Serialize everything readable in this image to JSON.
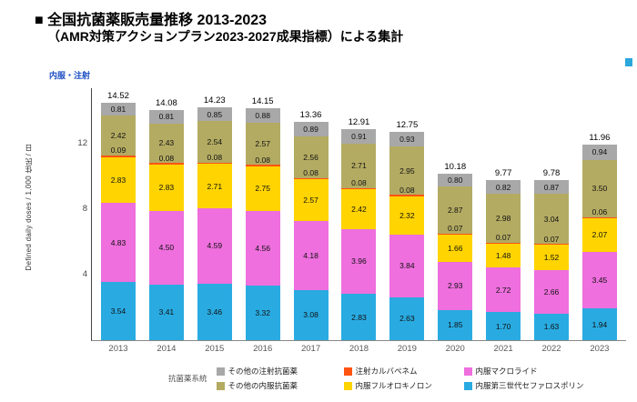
{
  "header": {
    "title": "■ 全国抗菌薬販売量推移 2013-2023",
    "subtitle": "（AMR対策アクションプラン2023-2027成果指標）による集計"
  },
  "chart": {
    "corner_label": "内服・注射"
  },
  "legend": {
    "title": "抗菌薬系統",
    "rows": [
      [
        {
          "label": "その他の注射抗菌薬",
          "color": "#a8a8a8"
        },
        {
          "label": "注射カルバペネム",
          "color": "#ff5412"
        },
        {
          "label": "内服マクロライド",
          "color": "#ee6fdd"
        }
      ],
      [
        {
          "label": "その他の内服抗菌薬",
          "color": "#b3ab62"
        },
        {
          "label": "内服フルオロキノロン",
          "color": "#ffd400"
        },
        {
          "label": "内服第三世代セファロスポリン",
          "color": "#29abe2"
        }
      ]
    ]
  },
  "chart_data": {
    "type": "bar",
    "stacked": true,
    "title": "全国抗菌薬販売量推移 2013-2023",
    "ylabel": "Defined daily doses / 1,000 住民 / 日",
    "ylim": [
      0,
      15
    ],
    "yticks": [
      4,
      8,
      12
    ],
    "grid": false,
    "legend_position": "bottom",
    "categories": [
      "2013",
      "2014",
      "2015",
      "2016",
      "2017",
      "2018",
      "2019",
      "2020",
      "2021",
      "2022",
      "2023"
    ],
    "totals": [
      14.52,
      14.08,
      14.23,
      14.15,
      13.36,
      12.91,
      12.75,
      10.18,
      9.77,
      9.78,
      11.96
    ],
    "series_order": "bottom-to-top",
    "series": [
      {
        "key": "oral-3rd-gen-cephalosporin",
        "name": "内服第三世代セファロスポリン",
        "color": "#29abe2",
        "values": [
          3.54,
          3.41,
          3.46,
          3.32,
          3.08,
          2.83,
          2.63,
          1.85,
          1.7,
          1.63,
          1.94
        ]
      },
      {
        "key": "oral-macrolide",
        "name": "内服マクロライド",
        "color": "#ee6fdd",
        "values": [
          4.83,
          4.5,
          4.59,
          4.56,
          4.18,
          3.96,
          3.84,
          2.93,
          2.72,
          2.66,
          3.45
        ]
      },
      {
        "key": "oral-fluoroquinolone",
        "name": "内服フルオロキノロン",
        "color": "#ffd400",
        "values": [
          2.83,
          2.83,
          2.71,
          2.75,
          2.57,
          2.42,
          2.32,
          1.66,
          1.48,
          1.52,
          2.07
        ]
      },
      {
        "key": "injectable-carbapenem",
        "name": "注射カルバペネム",
        "color": "#ff5412",
        "values": [
          0.09,
          0.08,
          0.08,
          0.08,
          0.08,
          0.08,
          0.08,
          0.07,
          0.07,
          0.07,
          0.06
        ]
      },
      {
        "key": "other-oral-antibiotics",
        "name": "その他の内服抗菌薬",
        "color": "#b3ab62",
        "values": [
          2.42,
          2.43,
          2.54,
          2.57,
          2.56,
          2.71,
          2.95,
          2.87,
          2.98,
          3.04,
          3.5
        ]
      },
      {
        "key": "other-injectable-antibiotics",
        "name": "その他の注射抗菌薬",
        "color": "#a8a8a8",
        "values": [
          0.81,
          0.81,
          0.85,
          0.88,
          0.89,
          0.91,
          0.93,
          0.8,
          0.82,
          0.87,
          0.94
        ]
      }
    ]
  }
}
